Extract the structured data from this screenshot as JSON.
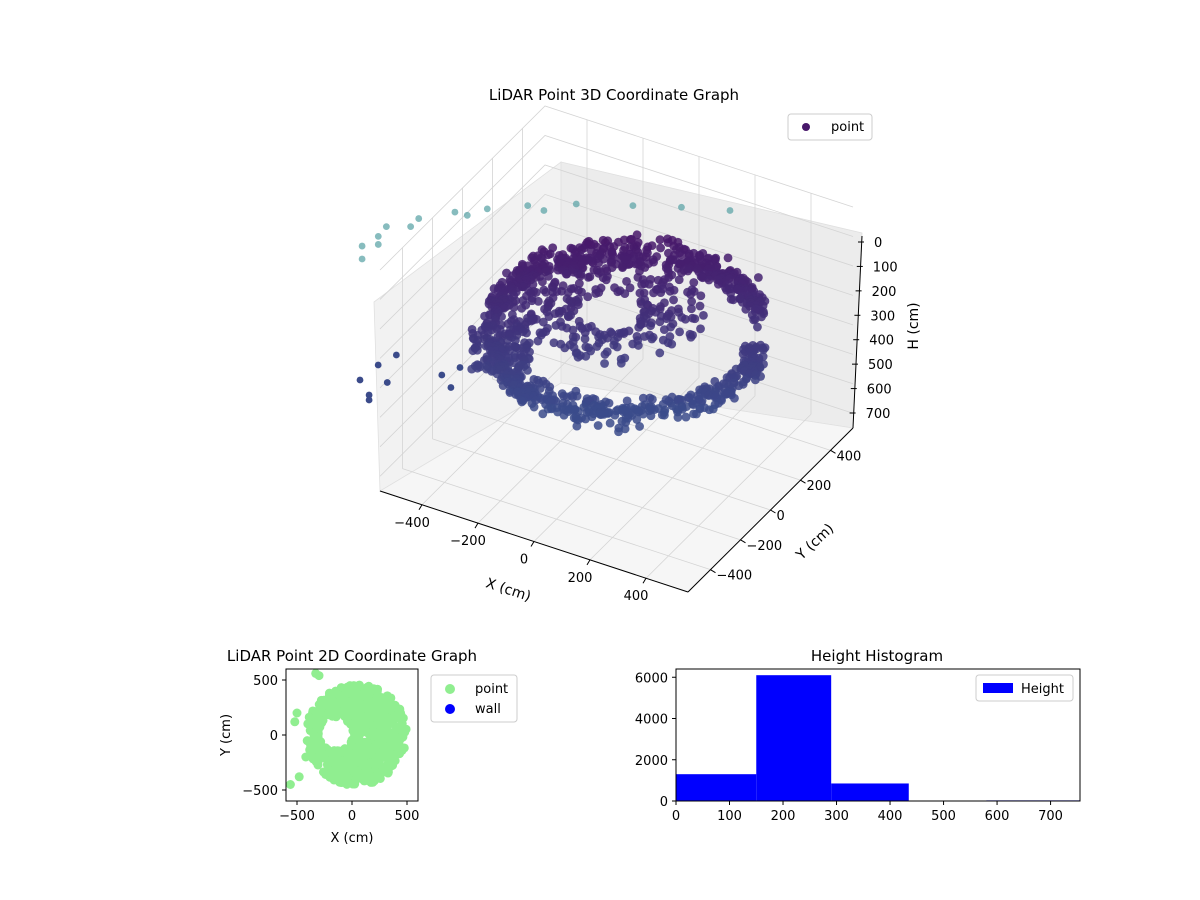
{
  "colors": {
    "point_3d": "#48186a",
    "point_3d_high": "#5fa6a8",
    "point_2d": "#90ee90",
    "wall_2d": "#0000ff",
    "hist_bar": "#0000ff"
  },
  "chart_data": [
    {
      "type": "scatter",
      "projection": "3d",
      "title": "LiDAR Point 3D Coordinate Graph",
      "xlabel": "X (cm)",
      "ylabel": "Y (cm)",
      "zlabel": "H (cm)",
      "x_ticks": [
        "−400",
        "−200",
        "0",
        "200",
        "400"
      ],
      "y_ticks": [
        "−400",
        "−200",
        "0",
        "200",
        "400"
      ],
      "z_ticks": [
        "0",
        "100",
        "200",
        "300",
        "400",
        "500",
        "600",
        "700"
      ],
      "xlim": [
        -550,
        550
      ],
      "ylim": [
        -550,
        550
      ],
      "zlim": [
        0,
        750
      ],
      "z_inverted": true,
      "legend": {
        "placement": "top-right",
        "entries": [
          "point"
        ]
      },
      "grid": true,
      "series": [
        {
          "name": "point",
          "points": [
            [
              -560,
              -120,
              720
            ],
            [
              -560,
              40,
              720
            ],
            [
              -520,
              160,
              720
            ],
            [
              -500,
              280,
              720
            ],
            [
              -420,
              380,
              720
            ],
            [
              -380,
              460,
              720
            ],
            [
              -300,
              500,
              720
            ],
            [
              -200,
              540,
              720
            ],
            [
              -80,
              560,
              720
            ],
            [
              60,
              540,
              720
            ],
            [
              180,
              520,
              720
            ],
            [
              300,
              480,
              720
            ],
            [
              -520,
              60,
              720
            ],
            [
              -440,
              280,
              720
            ],
            [
              -300,
              420,
              720
            ],
            [
              -160,
              480,
              720
            ],
            [
              -580,
              -400,
              470
            ],
            [
              -560,
              -520,
              450
            ],
            [
              -540,
              -280,
              440
            ],
            [
              -560,
              -560,
              400
            ],
            [
              -520,
              -420,
              410
            ],
            [
              -500,
              -200,
              430
            ],
            [
              -400,
              -360,
              400
            ],
            [
              -380,
              -460,
              380
            ],
            [
              -360,
              -300,
              390
            ]
          ],
          "ring_count": 7800
        }
      ]
    },
    {
      "type": "scatter",
      "title": "LiDAR Point 2D Coordinate Graph",
      "xlabel": "X (cm)",
      "ylabel": "Y (cm)",
      "x_ticks": [
        "−500",
        "0",
        "500"
      ],
      "y_ticks": [
        "500",
        "0",
        "−500"
      ],
      "xlim": [
        -600,
        600
      ],
      "ylim": [
        -600,
        600
      ],
      "legend": {
        "placement": "outside-right",
        "entries": [
          "point",
          "wall"
        ]
      },
      "series": [
        {
          "name": "point",
          "shape": "disc",
          "center": [
            40,
            0
          ],
          "radius": 460,
          "notch_center": [
            -150,
            10
          ],
          "notch_radius": 150
        },
        {
          "name": "wall",
          "points": []
        }
      ]
    },
    {
      "type": "bar",
      "subtype": "histogram",
      "title": "Height Histogram",
      "x_ticks": [
        "0",
        "100",
        "200",
        "300",
        "400",
        "500",
        "600",
        "700"
      ],
      "y_ticks": [
        "0",
        "2000",
        "4000",
        "6000"
      ],
      "xlim": [
        0,
        755
      ],
      "ylim": [
        0,
        6400
      ],
      "legend": {
        "placement": "top-right",
        "entries": [
          "Height"
        ]
      },
      "series": [
        {
          "name": "Height",
          "bins": [
            {
              "start": 0,
              "end": 150,
              "value": 1300
            },
            {
              "start": 150,
              "end": 290,
              "value": 6100
            },
            {
              "start": 290,
              "end": 435,
              "value": 850
            },
            {
              "start": 435,
              "end": 580,
              "value": 5
            },
            {
              "start": 580,
              "end": 755,
              "value": 30
            }
          ]
        }
      ]
    }
  ]
}
